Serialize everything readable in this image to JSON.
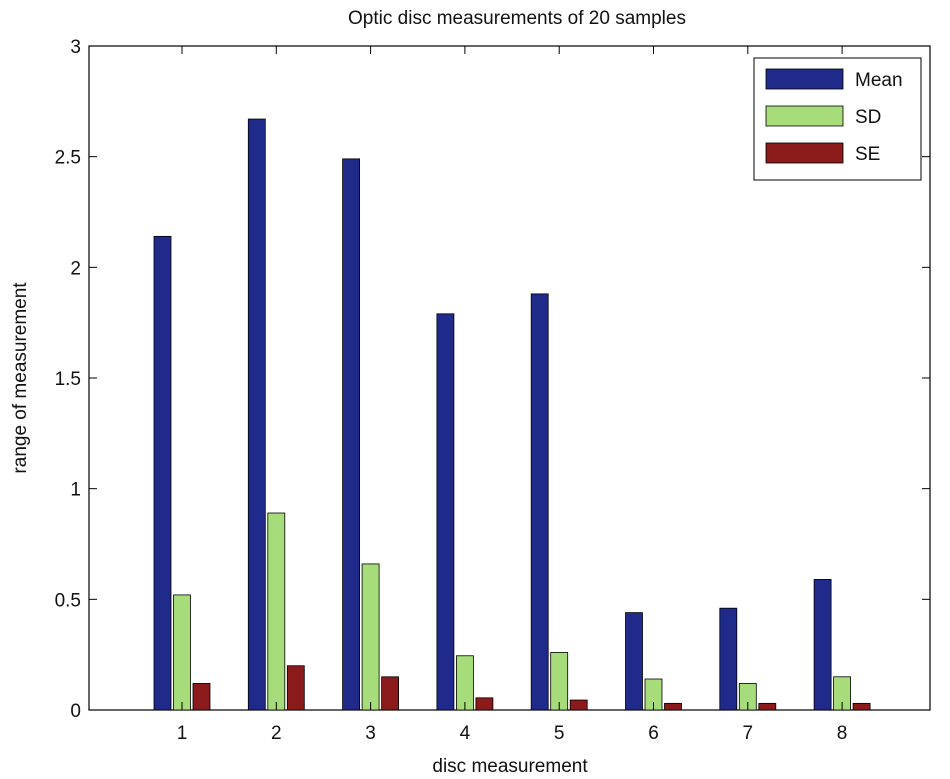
{
  "chart_data": {
    "type": "bar",
    "title": "Optic disc measurements of 20 samples",
    "xlabel": "disc measurement",
    "ylabel": "range of measurement",
    "categories": [
      "1",
      "2",
      "3",
      "4",
      "5",
      "6",
      "7",
      "8"
    ],
    "ylim": [
      0,
      3
    ],
    "yticks": [
      0,
      0.5,
      1,
      1.5,
      2,
      2.5,
      3
    ],
    "ytick_labels": [
      "0",
      "0.5",
      "1",
      "1.5",
      "2",
      "2.5",
      "3"
    ],
    "grid": false,
    "legend_position": "top-right",
    "series": [
      {
        "name": "Mean",
        "color": "#1f2a8a",
        "values": [
          2.14,
          2.67,
          2.49,
          1.79,
          1.88,
          0.44,
          0.46,
          0.59
        ]
      },
      {
        "name": "SD",
        "color": "#a6dd7a",
        "values": [
          0.52,
          0.89,
          0.66,
          0.245,
          0.26,
          0.14,
          0.12,
          0.15
        ]
      },
      {
        "name": "SE",
        "color": "#8b1a1a",
        "values": [
          0.12,
          0.2,
          0.15,
          0.055,
          0.045,
          0.03,
          0.03,
          0.03
        ]
      }
    ]
  }
}
